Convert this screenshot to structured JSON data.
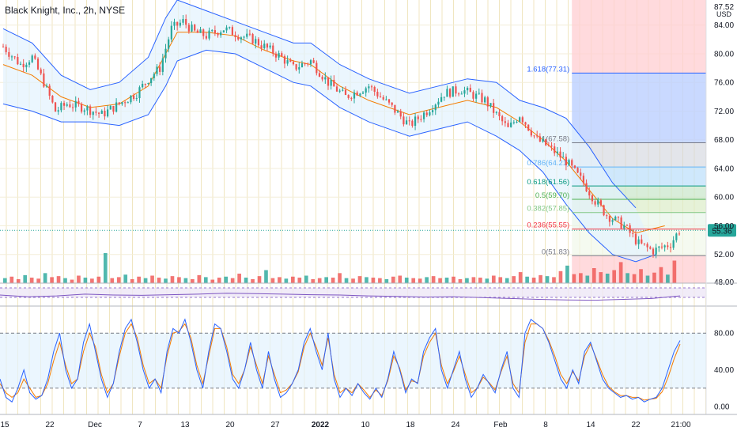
{
  "header": {
    "title": "Black Knight, Inc., 2h, NYSE",
    "currency_unit": "USD"
  },
  "colors": {
    "up": "#26a69a",
    "down": "#ef5350",
    "bb_band": "#2962ff",
    "bb_basis": "#f57c00",
    "bb_fill": "#e3f2fd",
    "fib_up_zone": "#bbd0ff",
    "fib_down_zone": "#ffcdd2",
    "grid": "#f0e6c0",
    "stoch_k": "#2962ff",
    "stoch_d": "#f57c00"
  },
  "chart_data": [
    {
      "type": "candlestick",
      "title": "Black Knight, Inc., 2h, NYSE",
      "price_axis_ticks": [
        52.0,
        56.0,
        60.0,
        64.0,
        68.0,
        72.0,
        76.0,
        80.0,
        84.0
      ],
      "price_axis_top_label": "87.52",
      "last_price_label": "55.36",
      "ylim": [
        48.0,
        87.5
      ],
      "date_axis_ticks": [
        "15",
        "22",
        "Dec",
        "7",
        "13",
        "20",
        "27",
        "2022",
        "10",
        "18",
        "24",
        "Feb",
        "8",
        "14",
        "22",
        "21:00"
      ],
      "close_path": [
        [
          0,
          81.0
        ],
        [
          6,
          78.5
        ],
        [
          10,
          79.5
        ],
        [
          14,
          76.0
        ],
        [
          18,
          72.0
        ],
        [
          22,
          73.0
        ],
        [
          28,
          72.5
        ],
        [
          34,
          71.5
        ],
        [
          40,
          73.0
        ],
        [
          46,
          74.5
        ],
        [
          50,
          76.5
        ],
        [
          54,
          78.0
        ],
        [
          58,
          83.5
        ],
        [
          62,
          84.5
        ],
        [
          66,
          83.0
        ],
        [
          70,
          82.5
        ],
        [
          76,
          83.5
        ],
        [
          82,
          82.5
        ],
        [
          86,
          82.0
        ],
        [
          90,
          81.0
        ],
        [
          96,
          79.5
        ],
        [
          100,
          78.0
        ],
        [
          106,
          79.0
        ],
        [
          112,
          76.0
        ],
        [
          118,
          74.0
        ],
        [
          126,
          75.5
        ],
        [
          134,
          72.5
        ],
        [
          140,
          70.0
        ],
        [
          146,
          72.0
        ],
        [
          152,
          74.5
        ],
        [
          158,
          75.0
        ],
        [
          166,
          73.5
        ],
        [
          174,
          69.5
        ],
        [
          178,
          71.5
        ],
        [
          184,
          68.0
        ],
        [
          188,
          67.0
        ],
        [
          194,
          65.0
        ],
        [
          200,
          62.0
        ],
        [
          204,
          59.5
        ],
        [
          208,
          57.5
        ],
        [
          214,
          56.0
        ],
        [
          219,
          53.5
        ],
        [
          224,
          52.5
        ],
        [
          230,
          53.5
        ],
        [
          233,
          55.36
        ]
      ],
      "bollinger_bands": {
        "upper": [
          [
            0,
            83.5
          ],
          [
            10,
            81.5
          ],
          [
            20,
            77.0
          ],
          [
            30,
            75.0
          ],
          [
            40,
            76.0
          ],
          [
            50,
            79.5
          ],
          [
            56,
            85.0
          ],
          [
            60,
            87.5
          ],
          [
            70,
            86.0
          ],
          [
            80,
            84.5
          ],
          [
            90,
            83.0
          ],
          [
            100,
            81.5
          ],
          [
            106,
            81.5
          ],
          [
            116,
            78.5
          ],
          [
            126,
            76.5
          ],
          [
            140,
            74.5
          ],
          [
            150,
            75.5
          ],
          [
            160,
            76.5
          ],
          [
            170,
            76.0
          ],
          [
            178,
            73.5
          ],
          [
            186,
            72.5
          ],
          [
            194,
            71.0
          ],
          [
            202,
            67.0
          ],
          [
            210,
            62.0
          ],
          [
            218,
            58.5
          ]
        ],
        "lower": [
          [
            0,
            73.0
          ],
          [
            10,
            72.0
          ],
          [
            20,
            70.5
          ],
          [
            30,
            70.5
          ],
          [
            40,
            70.0
          ],
          [
            50,
            71.5
          ],
          [
            56,
            75.5
          ],
          [
            60,
            79.0
          ],
          [
            70,
            80.5
          ],
          [
            80,
            80.0
          ],
          [
            90,
            78.0
          ],
          [
            100,
            76.0
          ],
          [
            106,
            75.5
          ],
          [
            116,
            72.5
          ],
          [
            126,
            70.5
          ],
          [
            140,
            68.5
          ],
          [
            150,
            69.5
          ],
          [
            160,
            70.5
          ],
          [
            170,
            68.5
          ],
          [
            178,
            66.5
          ],
          [
            186,
            63.5
          ],
          [
            194,
            59.0
          ],
          [
            202,
            55.0
          ],
          [
            210,
            52.0
          ],
          [
            218,
            51.0
          ],
          [
            225,
            52.0
          ]
        ],
        "basis": [
          [
            0,
            78.5
          ],
          [
            10,
            77.0
          ],
          [
            20,
            74.0
          ],
          [
            30,
            72.5
          ],
          [
            40,
            73.0
          ],
          [
            50,
            75.5
          ],
          [
            56,
            80.0
          ],
          [
            60,
            83.0
          ],
          [
            70,
            83.0
          ],
          [
            80,
            82.5
          ],
          [
            90,
            80.5
          ],
          [
            100,
            79.0
          ],
          [
            106,
            78.5
          ],
          [
            116,
            75.5
          ],
          [
            126,
            73.5
          ],
          [
            140,
            71.5
          ],
          [
            150,
            72.5
          ],
          [
            160,
            73.5
          ],
          [
            170,
            72.5
          ],
          [
            178,
            70.5
          ],
          [
            186,
            68.0
          ],
          [
            194,
            65.0
          ],
          [
            202,
            61.0
          ],
          [
            210,
            57.0
          ],
          [
            218,
            55.0
          ],
          [
            228,
            56.0
          ]
        ]
      },
      "fibonacci_retracement": {
        "levels": [
          {
            "ratio": "1.618",
            "price": 77.31,
            "label": "1.618(77.31)",
            "color": "#2962ff"
          },
          {
            "ratio": "1",
            "price": 67.58,
            "label": "1(67.58)",
            "color": "#787b86"
          },
          {
            "ratio": "0.786",
            "price": 64.21,
            "label": "0.786(64.21)",
            "color": "#64b5f6"
          },
          {
            "ratio": "0.618",
            "price": 61.56,
            "label": "0.618(61.56)",
            "color": "#089981"
          },
          {
            "ratio": "0.5",
            "price": 59.7,
            "label": "0.5(59.70)",
            "color": "#4caf50"
          },
          {
            "ratio": "0.382",
            "price": 57.85,
            "label": "0.382(57.85)",
            "color": "#81c784"
          },
          {
            "ratio": "0.236",
            "price": 55.55,
            "label": "0.236(55.55)",
            "color": "#f23645"
          },
          {
            "ratio": "0",
            "price": 51.83,
            "label": "0(51.83)",
            "color": "#787b86"
          }
        ]
      }
    },
    {
      "type": "bar",
      "title": "",
      "series": [
        {
          "values": [
            1,
            1.3,
            0.8,
            1.6,
            1.1,
            0.9,
            2.0,
            1.2,
            1.4,
            1.0,
            0.7,
            1.5,
            1.1,
            0.9,
            1.3,
            6.0,
            1.0,
            1.2,
            1.7,
            0.8,
            1.3,
            1.0,
            1.5,
            1.1,
            0.9,
            1.4,
            1.2,
            1.0,
            0.8,
            1.6,
            1.2,
            0.7,
            1.1,
            1.3,
            1.0,
            1.9,
            1.1,
            0.8,
            1.4,
            2.6,
            1.0,
            1.2,
            0.9,
            1.3,
            1.1,
            1.5,
            0.8,
            1.0,
            1.2,
            1.1,
            2.0,
            1.0,
            0.9,
            1.4,
            1.2,
            1.1,
            1.0,
            0.8,
            1.3,
            1.5,
            1.1,
            1.0,
            0.9,
            1.2,
            1.4,
            1.0,
            1.1,
            1.3,
            0.8,
            1.0,
            1.2,
            1.1,
            0.9,
            1.5,
            1.2,
            1.0,
            1.4,
            2.2,
            1.3,
            1.1,
            1.6,
            1.4,
            1.2,
            2.4,
            3.5,
            1.8,
            2.0,
            1.5,
            3.0,
            2.2,
            1.9,
            2.6,
            4.2,
            2.0,
            1.8,
            2.8,
            1.5,
            2.1,
            3.2,
            1.7,
            4.5
          ]
        }
      ]
    },
    {
      "type": "line",
      "title": "",
      "series": [
        {
          "values": [
            50,
            40,
            45,
            55,
            50,
            48,
            52,
            55,
            60,
            58,
            55,
            52,
            50,
            45,
            42,
            38,
            40,
            35,
            30,
            25,
            22,
            20,
            25,
            30,
            45
          ]
        }
      ]
    },
    {
      "type": "line",
      "title": "",
      "ylim": [
        0,
        100
      ],
      "y_ticks": [
        "0.00",
        "40.00",
        "80.00"
      ],
      "bands": [
        20,
        80
      ],
      "series": [
        {
          "values": [
            30,
            10,
            5,
            20,
            40,
            15,
            8,
            12,
            30,
            60,
            80,
            40,
            20,
            30,
            70,
            90,
            60,
            30,
            10,
            25,
            60,
            85,
            95,
            70,
            40,
            20,
            30,
            15,
            60,
            85,
            80,
            95,
            70,
            40,
            20,
            60,
            90,
            85,
            60,
            30,
            20,
            40,
            70,
            40,
            20,
            60,
            30,
            10,
            15,
            25,
            40,
            70,
            85,
            60,
            40,
            80,
            30,
            10,
            20,
            12,
            25,
            15,
            8,
            20,
            10,
            30,
            60,
            40,
            15,
            30,
            25,
            60,
            75,
            85,
            40,
            20,
            40,
            60,
            30,
            10,
            20,
            35,
            25,
            15,
            40,
            60,
            20,
            10,
            80,
            95,
            90,
            85,
            70,
            50,
            30,
            20,
            40,
            25,
            60,
            70,
            50,
            30,
            20,
            15,
            10,
            12,
            8,
            10,
            5,
            8,
            10,
            20,
            40,
            60,
            72
          ]
        },
        {
          "values": [
            25,
            15,
            10,
            15,
            30,
            20,
            10,
            12,
            25,
            50,
            70,
            45,
            25,
            30,
            60,
            80,
            65,
            35,
            15,
            25,
            55,
            80,
            90,
            75,
            45,
            25,
            30,
            20,
            55,
            80,
            82,
            90,
            75,
            45,
            25,
            55,
            85,
            85,
            65,
            35,
            25,
            40,
            65,
            45,
            25,
            55,
            35,
            15,
            18,
            25,
            38,
            65,
            80,
            65,
            45,
            75,
            35,
            15,
            20,
            15,
            25,
            18,
            10,
            18,
            12,
            28,
            55,
            42,
            18,
            28,
            26,
            55,
            70,
            80,
            45,
            25,
            38,
            55,
            35,
            15,
            20,
            32,
            26,
            18,
            38,
            55,
            25,
            15,
            70,
            90,
            90,
            85,
            72,
            55,
            35,
            25,
            38,
            28,
            55,
            68,
            52,
            35,
            22,
            16,
            12,
            12,
            10,
            10,
            7,
            8,
            9,
            16,
            32,
            52,
            68
          ]
        }
      ]
    }
  ]
}
